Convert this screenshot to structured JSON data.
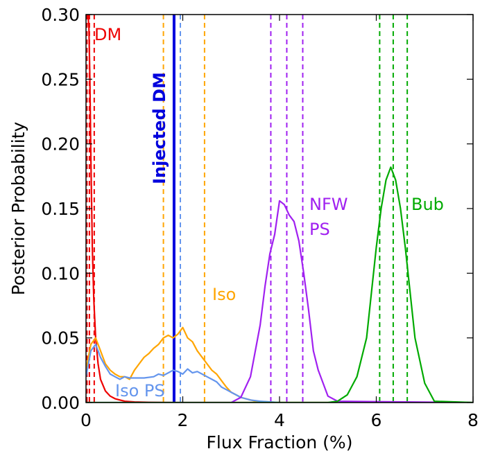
{
  "chart_data": {
    "type": "line",
    "title": "",
    "xlabel": "Flux Fraction (%)",
    "ylabel": "Posterior Probability",
    "xlim": [
      0,
      8
    ],
    "ylim": [
      0,
      0.3
    ],
    "xticks": [
      0,
      2,
      4,
      6,
      8
    ],
    "xtick_labels": [
      "0",
      "2",
      "4",
      "6",
      "8"
    ],
    "yticks": [
      0.0,
      0.05,
      0.1,
      0.15,
      0.2,
      0.25,
      0.3
    ],
    "ytick_labels": [
      "0.00",
      "0.05",
      "0.10",
      "0.15",
      "0.20",
      "0.25",
      "0.30"
    ],
    "grid": false,
    "series": [
      {
        "name": "DM",
        "label_lines": [
          "DM"
        ],
        "color": "#ee0000",
        "x": [
          0,
          0.02,
          0.04,
          0.06,
          0.08,
          0.1,
          0.13,
          0.16,
          0.2,
          0.25,
          0.3,
          0.4,
          0.5,
          0.6,
          0.7,
          0.8,
          1.0,
          1.3,
          1.6,
          2.0,
          8.0
        ],
        "y": [
          0.3,
          0.3,
          0.3,
          0.29,
          0.25,
          0.19,
          0.12,
          0.08,
          0.05,
          0.03,
          0.018,
          0.009,
          0.005,
          0.003,
          0.002,
          0.001,
          0.0005,
          0.0002,
          0.0001,
          0.0,
          0.0
        ],
        "quantiles": [
          0.02,
          0.07,
          0.17
        ]
      },
      {
        "name": "Iso",
        "label_lines": [
          "Iso"
        ],
        "color": "#ffa500",
        "x": [
          0,
          0.1,
          0.2,
          0.3,
          0.4,
          0.5,
          0.6,
          0.7,
          0.8,
          0.9,
          1.0,
          1.1,
          1.2,
          1.3,
          1.4,
          1.5,
          1.6,
          1.7,
          1.8,
          1.9,
          2.0,
          2.1,
          2.2,
          2.3,
          2.4,
          2.5,
          2.6,
          2.7,
          2.8,
          2.9,
          3.0,
          3.2,
          3.5,
          4.0,
          8.0
        ],
        "y": [
          0.025,
          0.045,
          0.05,
          0.04,
          0.03,
          0.025,
          0.022,
          0.02,
          0.02,
          0.018,
          0.025,
          0.03,
          0.035,
          0.038,
          0.042,
          0.045,
          0.05,
          0.052,
          0.05,
          0.053,
          0.058,
          0.05,
          0.047,
          0.04,
          0.035,
          0.03,
          0.025,
          0.022,
          0.017,
          0.012,
          0.008,
          0.004,
          0.001,
          0.0,
          0.0
        ],
        "quantiles": [
          1.6,
          1.82,
          2.45
        ]
      },
      {
        "name": "Iso PS",
        "label_lines": [
          "Iso PS"
        ],
        "color": "#6495ed",
        "x": [
          0,
          0.1,
          0.2,
          0.3,
          0.4,
          0.5,
          0.6,
          0.7,
          0.8,
          0.9,
          1.0,
          1.2,
          1.4,
          1.5,
          1.6,
          1.7,
          1.8,
          1.9,
          2.0,
          2.1,
          2.2,
          2.3,
          2.4,
          2.5,
          2.6,
          2.7,
          2.8,
          2.9,
          3.0,
          3.2,
          3.4,
          3.6,
          4.0,
          8.0
        ],
        "y": [
          0.02,
          0.04,
          0.045,
          0.035,
          0.028,
          0.022,
          0.02,
          0.018,
          0.02,
          0.019,
          0.019,
          0.019,
          0.02,
          0.022,
          0.021,
          0.023,
          0.025,
          0.024,
          0.022,
          0.026,
          0.023,
          0.024,
          0.022,
          0.02,
          0.018,
          0.016,
          0.012,
          0.01,
          0.008,
          0.004,
          0.002,
          0.001,
          0.0,
          0.0
        ],
        "quantiles": [
          1.95
        ]
      },
      {
        "name": "NFW PS",
        "label_lines": [
          "NFW",
          "PS"
        ],
        "color": "#a020f0",
        "x": [
          0,
          3.0,
          3.2,
          3.4,
          3.6,
          3.7,
          3.8,
          3.9,
          4.0,
          4.1,
          4.2,
          4.3,
          4.4,
          4.5,
          4.6,
          4.7,
          4.8,
          5.0,
          5.2,
          8.0
        ],
        "y": [
          0.0,
          0.0,
          0.004,
          0.02,
          0.06,
          0.09,
          0.115,
          0.13,
          0.156,
          0.153,
          0.145,
          0.14,
          0.125,
          0.1,
          0.072,
          0.04,
          0.025,
          0.005,
          0.001,
          0.0
        ],
        "quantiles": [
          3.82,
          4.15,
          4.48
        ]
      },
      {
        "name": "Bub",
        "label_lines": [
          "Bub"
        ],
        "color": "#00aa00",
        "x": [
          0,
          5.0,
          5.2,
          5.4,
          5.6,
          5.8,
          5.9,
          6.0,
          6.1,
          6.2,
          6.3,
          6.4,
          6.5,
          6.6,
          6.7,
          6.8,
          7.0,
          7.2,
          8.0
        ],
        "y": [
          0.0,
          0.0,
          0.001,
          0.006,
          0.02,
          0.05,
          0.085,
          0.12,
          0.15,
          0.172,
          0.182,
          0.172,
          0.15,
          0.12,
          0.085,
          0.05,
          0.015,
          0.001,
          0.0
        ],
        "quantiles": [
          6.07,
          6.35,
          6.64
        ]
      }
    ],
    "injected": {
      "label": "Injected DM",
      "x": 1.82,
      "color": "#0000dd"
    }
  }
}
